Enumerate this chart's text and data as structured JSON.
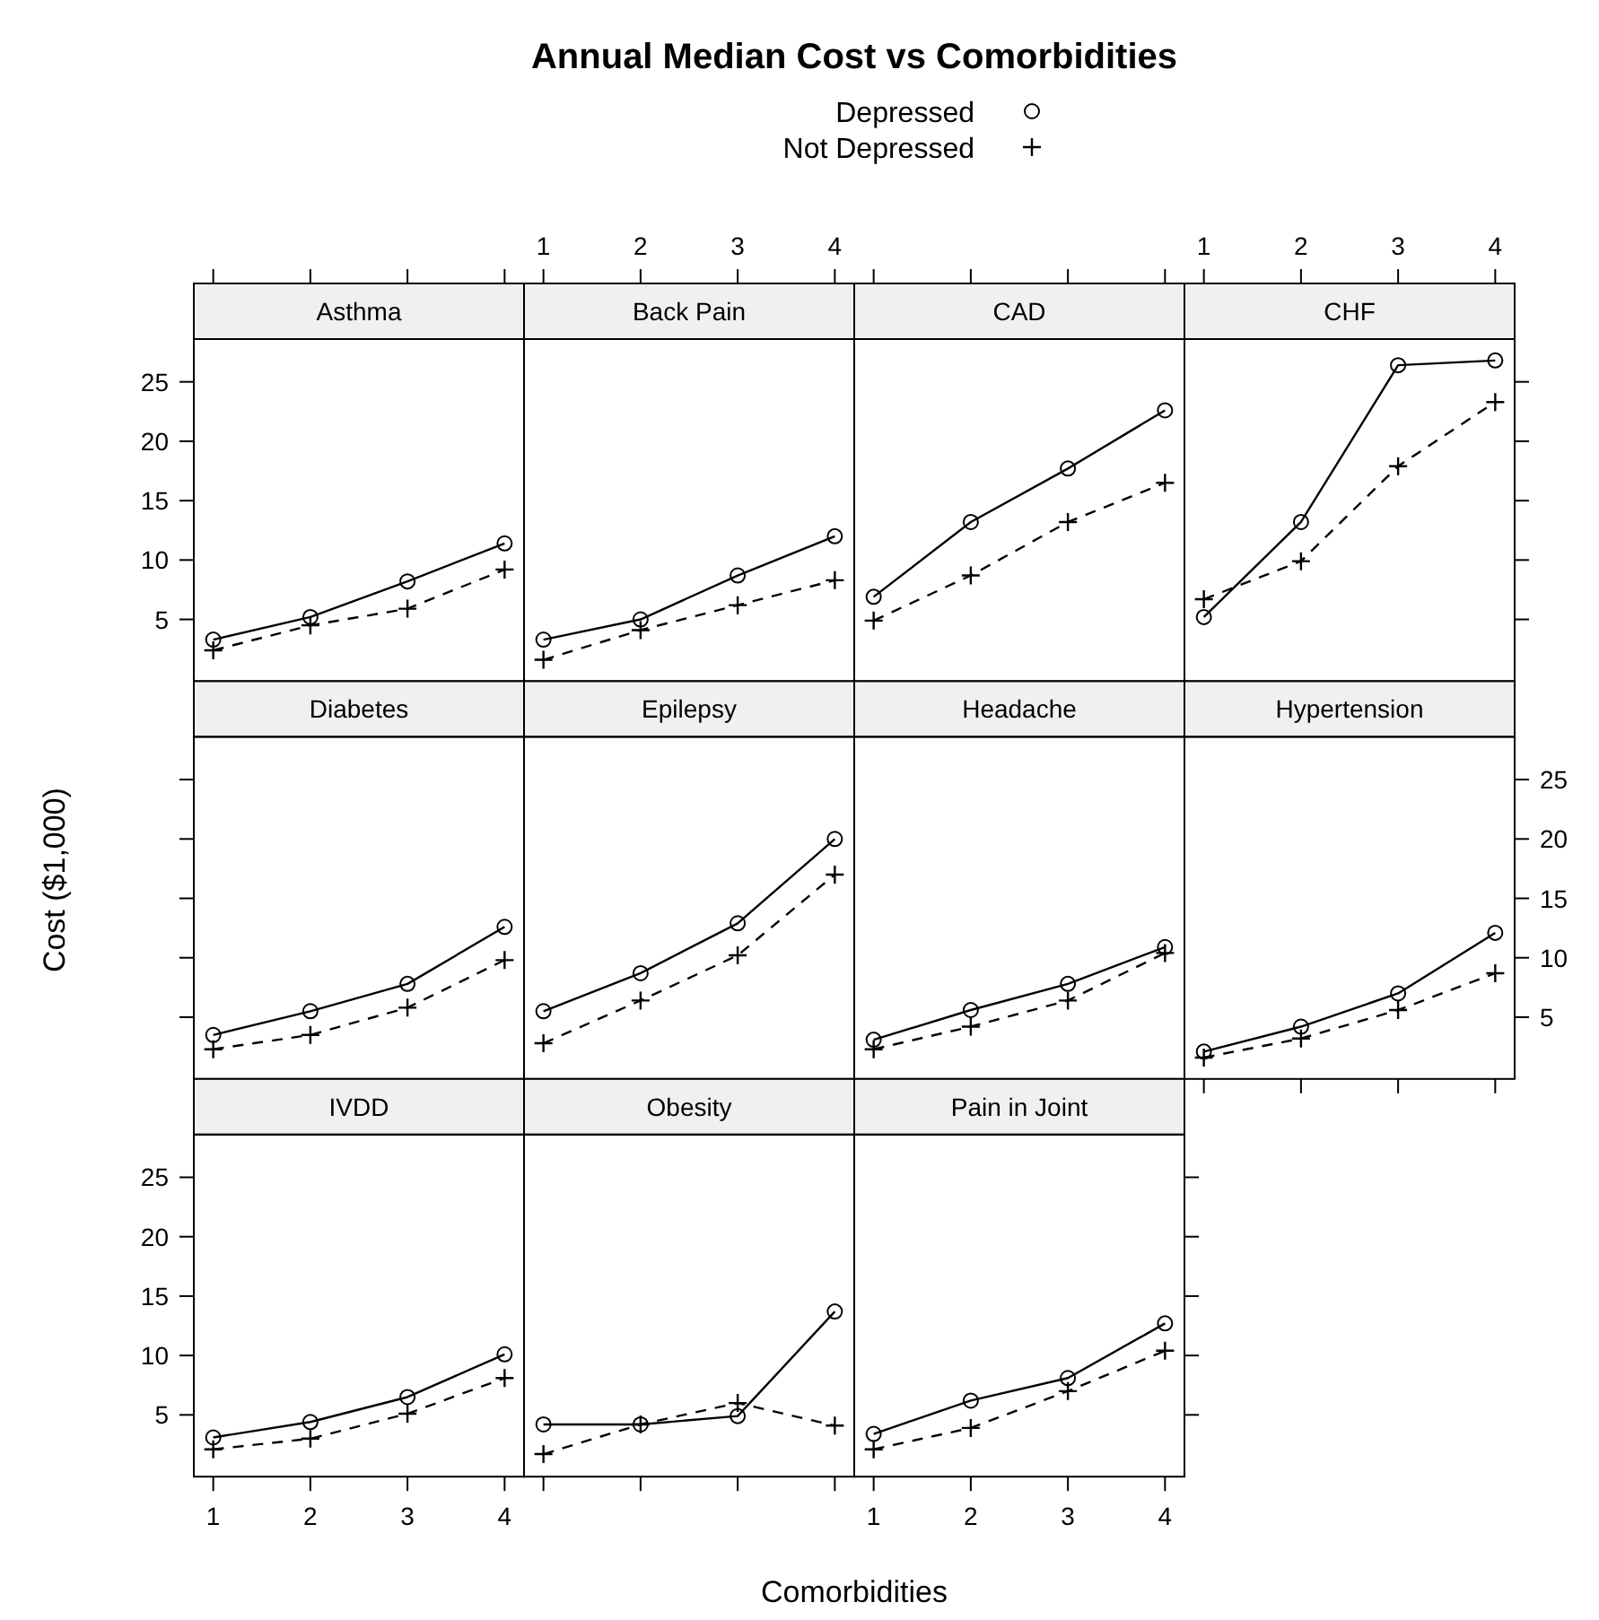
{
  "chart_data": [
    {
      "type": "other",
      "title": "Annual Median Cost vs Comorbidities",
      "xlabel": "Comorbidities",
      "ylabel": "Cost ($1,000)"
    },
    {
      "type": "line",
      "title": "Asthma",
      "x": [
        1,
        2,
        3,
        4
      ],
      "xlim": [
        0.8,
        4.2
      ],
      "xticks": [
        1,
        2,
        3,
        4
      ],
      "ylim": [
        -0.2,
        28.6
      ],
      "yticks": [
        5,
        10,
        15,
        20,
        25
      ],
      "tick_labels": "y",
      "legend": "top",
      "series": [
        {
          "name": "Depressed",
          "color": "#000000",
          "marker": "circle",
          "line_style": "solid",
          "values": [
            3.3,
            5.2,
            8.2,
            11.4
          ]
        },
        {
          "name": "Not Depressed",
          "color": "#000000",
          "marker": "cross",
          "line_style": "dashed",
          "values": [
            2.4,
            4.5,
            5.9,
            9.2
          ]
        }
      ]
    },
    {
      "type": "line",
      "title": "Back Pain",
      "x": [
        1,
        2,
        3,
        4
      ],
      "xlim": [
        0.8,
        4.2
      ],
      "xticks": [
        1,
        2,
        3,
        4
      ],
      "ylim": [
        -0.2,
        28.6
      ],
      "yticks": [
        5,
        10,
        15,
        20,
        25
      ],
      "tick_labels": "x",
      "series": [
        {
          "color": "#000000",
          "marker": "circle",
          "line_style": "solid",
          "values": [
            3.3,
            5.0,
            8.7,
            12.0
          ]
        },
        {
          "color": "#000000",
          "marker": "cross",
          "line_style": "dashed",
          "values": [
            1.6,
            4.1,
            6.2,
            8.3
          ]
        }
      ]
    },
    {
      "type": "line",
      "title": "CAD",
      "x": [
        1,
        2,
        3,
        4
      ],
      "xlim": [
        0.8,
        4.2
      ],
      "xticks": [
        1,
        2,
        3,
        4
      ],
      "ylim": [
        -0.2,
        28.6
      ],
      "yticks": [
        5,
        10,
        15,
        20,
        25
      ],
      "tick_labels": false,
      "series": [
        {
          "color": "#000000",
          "marker": "circle",
          "line_style": "solid",
          "values": [
            6.9,
            13.2,
            17.7,
            22.6
          ]
        },
        {
          "color": "#000000",
          "marker": "cross",
          "line_style": "dashed",
          "values": [
            4.9,
            8.7,
            13.2,
            16.5
          ]
        }
      ]
    },
    {
      "type": "line",
      "title": "CHF",
      "x": [
        1,
        2,
        3,
        4
      ],
      "xlim": [
        0.8,
        4.2
      ],
      "xticks": [
        1,
        2,
        3,
        4
      ],
      "ylim": [
        -0.2,
        28.6
      ],
      "yticks": [
        5,
        10,
        15,
        20,
        25
      ],
      "tick_labels": "x",
      "series": [
        {
          "color": "#000000",
          "marker": "circle",
          "line_style": "solid",
          "values": [
            5.2,
            13.2,
            26.4,
            26.8
          ]
        },
        {
          "color": "#000000",
          "marker": "cross",
          "line_style": "dashed",
          "values": [
            6.7,
            9.9,
            17.9,
            23.3
          ]
        }
      ]
    },
    {
      "type": "line",
      "title": "Diabetes",
      "x": [
        1,
        2,
        3,
        4
      ],
      "xlim": [
        0.8,
        4.2
      ],
      "xticks": [
        1,
        2,
        3,
        4
      ],
      "ylim": [
        -0.2,
        28.6
      ],
      "yticks": [
        5,
        10,
        15,
        20,
        25
      ],
      "tick_labels": false,
      "series": [
        {
          "color": "#000000",
          "marker": "circle",
          "line_style": "solid",
          "values": [
            3.5,
            5.5,
            7.8,
            12.6
          ]
        },
        {
          "color": "#000000",
          "marker": "cross",
          "line_style": "dashed",
          "values": [
            2.3,
            3.5,
            5.8,
            9.8
          ]
        }
      ]
    },
    {
      "type": "line",
      "title": "Epilepsy",
      "x": [
        1,
        2,
        3,
        4
      ],
      "xlim": [
        0.8,
        4.2
      ],
      "xticks": [
        1,
        2,
        3,
        4
      ],
      "ylim": [
        -0.2,
        28.6
      ],
      "yticks": [
        5,
        10,
        15,
        20,
        25
      ],
      "tick_labels": false,
      "series": [
        {
          "color": "#000000",
          "marker": "circle",
          "line_style": "solid",
          "values": [
            5.5,
            8.7,
            12.9,
            20.0
          ]
        },
        {
          "color": "#000000",
          "marker": "cross",
          "line_style": "dashed",
          "values": [
            2.8,
            6.4,
            10.2,
            17.0
          ]
        }
      ]
    },
    {
      "type": "line",
      "title": "Headache",
      "x": [
        1,
        2,
        3,
        4
      ],
      "xlim": [
        0.8,
        4.2
      ],
      "xticks": [
        1,
        2,
        3,
        4
      ],
      "ylim": [
        -0.2,
        28.6
      ],
      "yticks": [
        5,
        10,
        15,
        20,
        25
      ],
      "tick_labels": false,
      "series": [
        {
          "color": "#000000",
          "marker": "circle",
          "line_style": "solid",
          "values": [
            3.1,
            5.6,
            7.8,
            10.9
          ]
        },
        {
          "color": "#000000",
          "marker": "cross",
          "line_style": "dashed",
          "values": [
            2.3,
            4.2,
            6.4,
            10.4
          ]
        }
      ]
    },
    {
      "type": "line",
      "title": "Hypertension",
      "x": [
        1,
        2,
        3,
        4
      ],
      "xlim": [
        0.8,
        4.2
      ],
      "xticks": [
        1,
        2,
        3,
        4
      ],
      "ylim": [
        -0.2,
        28.6
      ],
      "yticks": [
        5,
        10,
        15,
        20,
        25
      ],
      "tick_labels": "y",
      "series": [
        {
          "color": "#000000",
          "marker": "circle",
          "line_style": "solid",
          "values": [
            2.1,
            4.2,
            7.0,
            12.1
          ]
        },
        {
          "color": "#000000",
          "marker": "cross",
          "line_style": "dashed",
          "values": [
            1.6,
            3.2,
            5.6,
            8.7
          ]
        }
      ]
    },
    {
      "type": "line",
      "title": "IVDD",
      "x": [
        1,
        2,
        3,
        4
      ],
      "xlim": [
        0.8,
        4.2
      ],
      "xticks": [
        1,
        2,
        3,
        4
      ],
      "ylim": [
        -0.2,
        28.6
      ],
      "yticks": [
        5,
        10,
        15,
        20,
        25
      ],
      "series": [
        {
          "color": "#000000",
          "marker": "circle",
          "line_style": "solid",
          "values": [
            3.1,
            4.4,
            6.5,
            10.1
          ]
        },
        {
          "color": "#000000",
          "marker": "cross",
          "line_style": "dashed",
          "values": [
            2.1,
            3.0,
            5.1,
            8.1
          ]
        }
      ]
    },
    {
      "type": "line",
      "title": "Obesity",
      "x": [
        1,
        2,
        3,
        4
      ],
      "xlim": [
        0.8,
        4.2
      ],
      "xticks": [
        1,
        2,
        3,
        4
      ],
      "ylim": [
        -0.2,
        28.6
      ],
      "yticks": [
        5,
        10,
        15,
        20,
        25
      ],
      "tick_labels": false,
      "series": [
        {
          "color": "#000000",
          "marker": "circle",
          "line_style": "solid",
          "values": [
            4.2,
            4.2,
            4.9,
            13.7
          ]
        },
        {
          "color": "#000000",
          "marker": "cross",
          "line_style": "dashed",
          "values": [
            1.7,
            4.2,
            6.0,
            4.1
          ]
        }
      ]
    },
    {
      "type": "line",
      "title": "Pain in Joint",
      "x": [
        1,
        2,
        3,
        4
      ],
      "xlim": [
        0.8,
        4.2
      ],
      "xticks": [
        1,
        2,
        3,
        4
      ],
      "ylim": [
        -0.2,
        28.6
      ],
      "yticks": [
        5,
        10,
        15,
        20,
        25
      ],
      "tick_labels": "x",
      "series": [
        {
          "color": "#000000",
          "marker": "circle",
          "line_style": "solid",
          "values": [
            3.4,
            6.2,
            8.1,
            12.7
          ]
        },
        {
          "color": "#000000",
          "marker": "cross",
          "line_style": "dashed",
          "values": [
            2.1,
            3.9,
            7.0,
            10.4
          ]
        }
      ]
    }
  ]
}
